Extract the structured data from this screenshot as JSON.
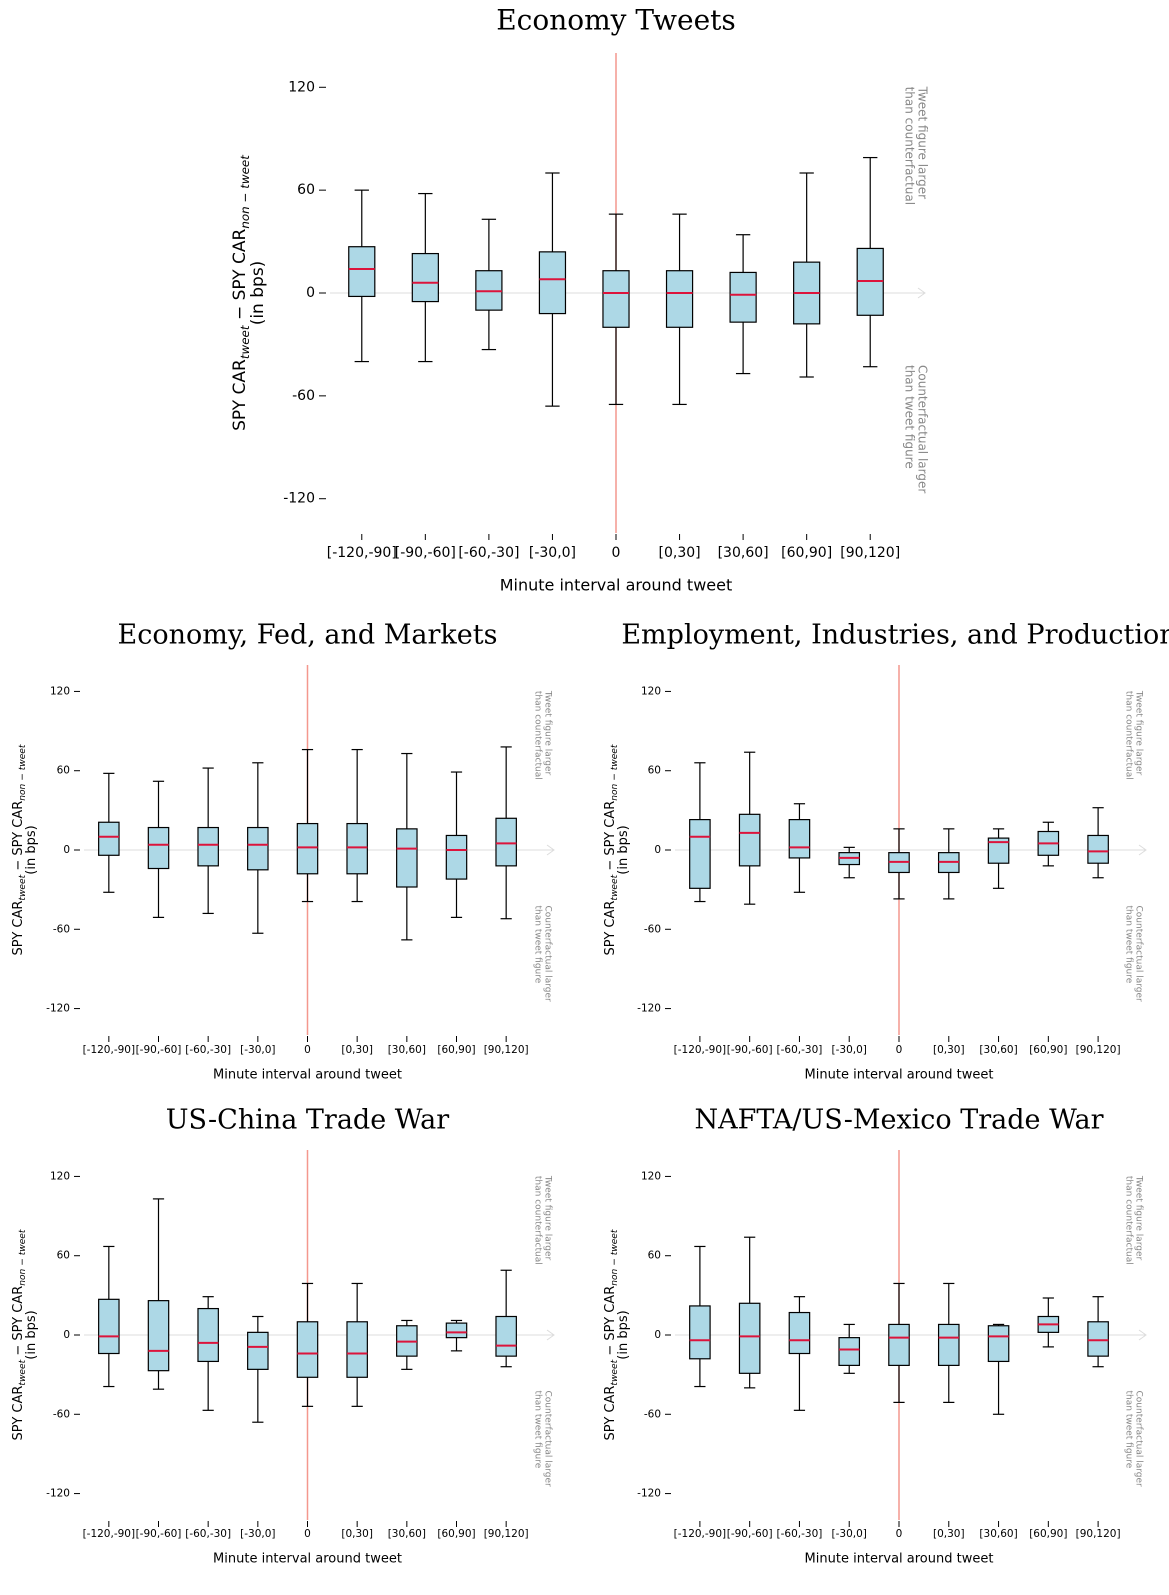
{
  "chart_data": [
    {
      "type": "box",
      "title": "Economy Tweets",
      "categories": [
        "[-120,-90]",
        "[-90,-60]",
        "[-60,-30]",
        "[-30,0]",
        "0",
        "[0,30]",
        "[30,60]",
        "[60,90]",
        "[90,120]"
      ],
      "whisker_high": [
        60,
        58,
        43,
        70,
        46,
        46,
        34,
        70,
        79
      ],
      "q3": [
        27,
        23,
        13,
        24,
        13,
        13,
        12,
        18,
        26
      ],
      "median": [
        14,
        6,
        1,
        8,
        0,
        0,
        -1,
        0,
        7
      ],
      "q1": [
        -2,
        -5,
        -10,
        -12,
        -20,
        -20,
        -17,
        -18,
        -13
      ],
      "whisker_low": [
        -40,
        -40,
        -33,
        -66,
        -65,
        -65,
        -47,
        -49,
        -43
      ],
      "ylim": [
        -140,
        140
      ],
      "yticks": [
        -120,
        -60,
        0,
        60,
        120
      ],
      "xlabel": "Minute interval around tweet",
      "ylabel_parts": [
        "SPY CAR",
        "tweet",
        " − SPY CAR",
        "non − tweet"
      ],
      "ylabel_unit": "(in bps)",
      "annotations": [
        [
          "Tweet figure larger",
          "than counterfactual"
        ],
        [
          "Counterfactual larger",
          "than tweet figure"
        ]
      ],
      "vline_at": "0",
      "box_color": "#add8e6",
      "median_color": "#dc143c",
      "vline_color": "#f4978e"
    },
    {
      "type": "box",
      "title": "Economy, Fed, and Markets",
      "categories": [
        "[-120,-90]",
        "[-90,-60]",
        "[-60,-30]",
        "[-30,0]",
        "0",
        "[0,30]",
        "[30,60]",
        "[60,90]",
        "[90,120]"
      ],
      "whisker_high": [
        58,
        52,
        62,
        66,
        76,
        76,
        73,
        59,
        78
      ],
      "q3": [
        21,
        17,
        17,
        17,
        20,
        20,
        16,
        11,
        24
      ],
      "median": [
        10,
        4,
        4,
        4,
        2,
        2,
        1,
        0,
        5
      ],
      "q1": [
        -4,
        -14,
        -12,
        -15,
        -18,
        -18,
        -28,
        -22,
        -12
      ],
      "whisker_low": [
        -32,
        -51,
        -48,
        -63,
        -39,
        -39,
        -68,
        -51,
        -52
      ],
      "ylim": [
        -140,
        140
      ],
      "yticks": [
        -120,
        -60,
        0,
        60,
        120
      ],
      "xlabel": "Minute interval around tweet",
      "ylabel_parts": [
        "SPY CAR",
        "tweet",
        " − SPY CAR",
        "non − tweet"
      ],
      "ylabel_unit": "(in bps)",
      "annotations": [
        [
          "Tweet figure larger",
          "than counterfactual"
        ],
        [
          "Counterfactual larger",
          "than tweet figure"
        ]
      ],
      "vline_at": "0",
      "box_color": "#add8e6",
      "median_color": "#dc143c",
      "vline_color": "#f4978e"
    },
    {
      "type": "box",
      "title": "Employment, Industries, and Production",
      "categories": [
        "[-120,-90]",
        "[-90,-60]",
        "[-60,-30]",
        "[-30,0]",
        "0",
        "[0,30]",
        "[30,60]",
        "[60,90]",
        "[90,120]"
      ],
      "whisker_high": [
        66,
        74,
        35,
        2,
        16,
        16,
        16,
        21,
        32
      ],
      "q3": [
        23,
        27,
        23,
        -2,
        -2,
        -2,
        9,
        14,
        11
      ],
      "median": [
        10,
        13,
        2,
        -6,
        -9,
        -9,
        6,
        5,
        -1
      ],
      "q1": [
        -29,
        -12,
        -6,
        -11,
        -17,
        -17,
        -10,
        -4,
        -10
      ],
      "whisker_low": [
        -39,
        -41,
        -32,
        -21,
        -37,
        -37,
        -29,
        -12,
        -21
      ],
      "ylim": [
        -140,
        140
      ],
      "yticks": [
        -120,
        -60,
        0,
        60,
        120
      ],
      "xlabel": "Minute interval around tweet",
      "ylabel_parts": [
        "SPY CAR",
        "tweet",
        " − SPY CAR",
        "non − tweet"
      ],
      "ylabel_unit": "(in bps)",
      "annotations": [
        [
          "Tweet figure larger",
          "than counterfactual"
        ],
        [
          "Counterfactual larger",
          "than tweet figure"
        ]
      ],
      "vline_at": "0",
      "box_color": "#add8e6",
      "median_color": "#dc143c",
      "vline_color": "#f4978e"
    },
    {
      "type": "box",
      "title": "US-China Trade War",
      "categories": [
        "[-120,-90]",
        "[-90,-60]",
        "[-60,-30]",
        "[-30,0]",
        "0",
        "[0,30]",
        "[30,60]",
        "[60,90]",
        "[90,120]"
      ],
      "whisker_high": [
        67,
        103,
        29,
        14,
        39,
        39,
        11,
        11,
        49
      ],
      "q3": [
        27,
        26,
        20,
        2,
        10,
        10,
        7,
        9,
        14
      ],
      "median": [
        -1,
        -12,
        -6,
        -9,
        -14,
        -14,
        -5,
        2,
        -8
      ],
      "q1": [
        -14,
        -27,
        -20,
        -26,
        -32,
        -32,
        -16,
        -2,
        -16
      ],
      "whisker_low": [
        -39,
        -41,
        -57,
        -66,
        -54,
        -54,
        -26,
        -12,
        -24
      ],
      "ylim": [
        -140,
        140
      ],
      "yticks": [
        -120,
        -60,
        0,
        60,
        120
      ],
      "xlabel": "Minute interval around tweet",
      "ylabel_parts": [
        "SPY CAR",
        "tweet",
        " − SPY CAR",
        "non − tweet"
      ],
      "ylabel_unit": "(in bps)",
      "annotations": [
        [
          "Tweet figure larger",
          "than counterfactual"
        ],
        [
          "Counterfactual larger",
          "than tweet figure"
        ]
      ],
      "vline_at": "0",
      "box_color": "#add8e6",
      "median_color": "#dc143c",
      "vline_color": "#f4978e"
    },
    {
      "type": "box",
      "title": "NAFTA/US-Mexico Trade War",
      "categories": [
        "[-120,-90]",
        "[-90,-60]",
        "[-60,-30]",
        "[-30,0]",
        "0",
        "[0,30]",
        "[30,60]",
        "[60,90]",
        "[90,120]"
      ],
      "whisker_high": [
        67,
        74,
        29,
        8,
        39,
        39,
        8,
        28,
        29
      ],
      "q3": [
        22,
        24,
        17,
        -2,
        8,
        8,
        7,
        14,
        10
      ],
      "median": [
        -4,
        -1,
        -4,
        -11,
        -2,
        -2,
        -1,
        8,
        -4
      ],
      "q1": [
        -18,
        -29,
        -14,
        -23,
        -23,
        -23,
        -20,
        2,
        -16
      ],
      "whisker_low": [
        -39,
        -40,
        -57,
        -29,
        -51,
        -51,
        -60,
        -9,
        -24
      ],
      "ylim": [
        -140,
        140
      ],
      "yticks": [
        -120,
        -60,
        0,
        60,
        120
      ],
      "xlabel": "Minute interval around tweet",
      "ylabel_parts": [
        "SPY CAR",
        "tweet",
        " − SPY CAR",
        "non − tweet"
      ],
      "ylabel_unit": "(in bps)",
      "annotations": [
        [
          "Tweet figure larger",
          "than counterfactual"
        ],
        [
          "Counterfactual larger",
          "than tweet figure"
        ]
      ],
      "vline_at": "0",
      "box_color": "#add8e6",
      "median_color": "#dc143c",
      "vline_color": "#f4978e"
    }
  ]
}
